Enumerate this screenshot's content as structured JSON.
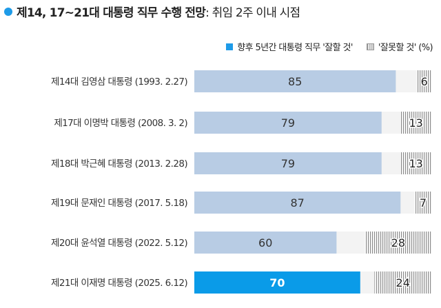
{
  "title": "제14, 17~21대 대통령 직무 수행 전망",
  "subtitle": ": 취임 2주 이내 시점",
  "legend": {
    "good": "향후 5년간 대통령 직무 '잘할 것'",
    "bad": "'잘못할 것' (%)"
  },
  "colors": {
    "good": "#b8cce4",
    "highlight": "#0a9be8",
    "bad": "#999999",
    "track": "#f3f3f3"
  },
  "chart_data": {
    "type": "bar",
    "orientation": "horizontal-stacked",
    "title": "제14, 17~21대 대통령 직무 수행 전망: 취임 2주 이내 시점",
    "categories": [
      "제14대 김영삼 대통령 (1993. 2.27)",
      "제17대 이명박 대통령 (2008. 3. 2)",
      "제18대 박근혜 대통령 (2013. 2.28)",
      "제19대 문재인 대통령 (2017. 5.18)",
      "제20대 윤석열 대통령 (2022. 5.12)",
      "제21대 이재명 대통령 (2025. 6.12)"
    ],
    "series": [
      {
        "name": "잘할 것",
        "values": [
          85,
          79,
          79,
          87,
          60,
          70
        ]
      },
      {
        "name": "잘못할 것",
        "values": [
          6,
          13,
          13,
          7,
          28,
          24
        ]
      }
    ],
    "highlight_index": 5,
    "xlim": [
      0,
      100
    ],
    "unit": "%"
  }
}
